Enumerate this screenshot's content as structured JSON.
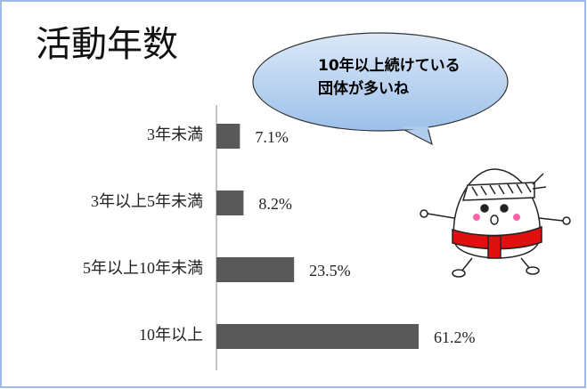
{
  "chart_data": {
    "type": "bar",
    "orientation": "horizontal",
    "title": "活動年数",
    "annotation": [
      "10年以上続けている",
      "団体が多いね"
    ],
    "categories": [
      "3年未満",
      "3年以上5年未満",
      "5年以上10年未満",
      "10年以上"
    ],
    "values": [
      7.1,
      8.2,
      23.5,
      61.2
    ],
    "value_labels": [
      "7.1%",
      "8.2%",
      "23.5%",
      "61.2%"
    ],
    "color": "#595959"
  }
}
